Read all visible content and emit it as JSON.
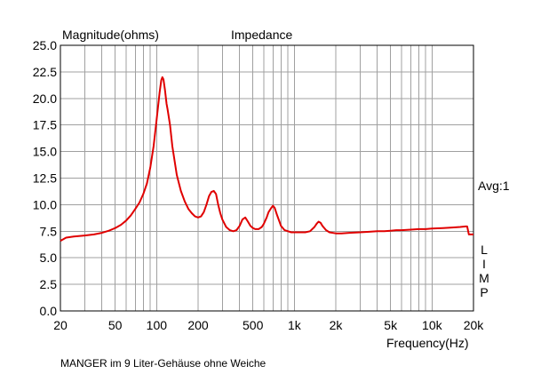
{
  "chart_data": {
    "type": "line",
    "title": "Impedance",
    "xlabel": "Frequency(Hz)",
    "ylabel": "Magnitude(ohms)",
    "x_scale": "log",
    "xlim": [
      20,
      20000
    ],
    "ylim": [
      0,
      25
    ],
    "x_ticks": [
      {
        "value": 20,
        "label": "20"
      },
      {
        "value": 50,
        "label": "50"
      },
      {
        "value": 100,
        "label": "100"
      },
      {
        "value": 200,
        "label": "200"
      },
      {
        "value": 500,
        "label": "500"
      },
      {
        "value": 1000,
        "label": "1k"
      },
      {
        "value": 2000,
        "label": "2k"
      },
      {
        "value": 5000,
        "label": "5k"
      },
      {
        "value": 10000,
        "label": "10k"
      },
      {
        "value": 20000,
        "label": "20k"
      }
    ],
    "y_ticks": [
      "0.0",
      "2.5",
      "5.0",
      "7.5",
      "10.0",
      "12.5",
      "15.0",
      "17.5",
      "20.0",
      "22.5",
      "25.0"
    ],
    "grid": true,
    "line_color": "#e00000",
    "series": [
      {
        "x": [
          20,
          22,
          25,
          30,
          35,
          40,
          45,
          50,
          55,
          60,
          65,
          70,
          75,
          80,
          85,
          90,
          95,
          100,
          105,
          108,
          110,
          112,
          115,
          118,
          120,
          125,
          130,
          140,
          150,
          160,
          170,
          180,
          190,
          200,
          210,
          220,
          230,
          240,
          250,
          260,
          270,
          280,
          290,
          300,
          320,
          340,
          360,
          380,
          400,
          420,
          440,
          460,
          480,
          500,
          520,
          550,
          580,
          600,
          630,
          650,
          680,
          700,
          720,
          750,
          780,
          800,
          850,
          900,
          950,
          1000,
          1100,
          1200,
          1300,
          1400,
          1450,
          1500,
          1550,
          1600,
          1700,
          1800,
          2000,
          2200,
          2500,
          3000,
          3500,
          4000,
          4500,
          5000,
          5500,
          6000,
          7000,
          8000,
          9000,
          10000,
          12000,
          14000,
          16000,
          17500,
          18000,
          18500,
          19000,
          20000
        ],
        "y": [
          6.6,
          6.9,
          7.0,
          7.1,
          7.2,
          7.35,
          7.55,
          7.8,
          8.1,
          8.5,
          9.0,
          9.6,
          10.2,
          11.0,
          12.0,
          13.5,
          15.5,
          18.0,
          20.5,
          21.7,
          22.0,
          21.8,
          20.8,
          19.5,
          19.0,
          17.5,
          15.5,
          12.8,
          11.3,
          10.3,
          9.6,
          9.2,
          8.9,
          8.8,
          8.9,
          9.3,
          10.0,
          10.8,
          11.2,
          11.3,
          11.0,
          10.0,
          9.2,
          8.6,
          7.9,
          7.6,
          7.5,
          7.6,
          8.0,
          8.6,
          8.8,
          8.4,
          8.0,
          7.8,
          7.7,
          7.7,
          7.9,
          8.2,
          8.8,
          9.3,
          9.7,
          9.9,
          9.7,
          9.0,
          8.4,
          8.0,
          7.6,
          7.5,
          7.4,
          7.4,
          7.4,
          7.4,
          7.5,
          7.9,
          8.2,
          8.4,
          8.3,
          8.0,
          7.6,
          7.4,
          7.3,
          7.3,
          7.35,
          7.4,
          7.45,
          7.5,
          7.5,
          7.55,
          7.6,
          7.6,
          7.65,
          7.7,
          7.7,
          7.75,
          7.8,
          7.85,
          7.9,
          7.95,
          7.95,
          7.2,
          7.2,
          7.2
        ]
      }
    ]
  },
  "annotations": {
    "avg": "Avg:1",
    "lim_letters": [
      "L",
      "I",
      "M",
      "P"
    ]
  },
  "caption": "MANGER im 9 Liter-Gehäuse ohne Weiche"
}
